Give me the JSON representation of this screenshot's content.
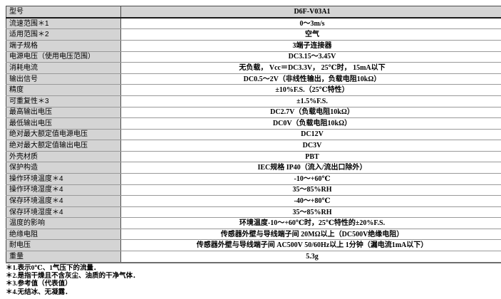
{
  "colors": {
    "label_background": "#d4d4d4",
    "row_line": "#999999",
    "column_divider": "#4a4a4a",
    "outer_border": "#7d7d7d",
    "header_rule": "#1a1a1a",
    "text": "#000000",
    "page_background": "#ffffff"
  },
  "table": {
    "rows": [
      {
        "header": true,
        "label": "型号",
        "value": "D6F-V03A1"
      },
      {
        "header": false,
        "label": "流速范围＊1",
        "value": "0～3m/s"
      },
      {
        "header": false,
        "label": "适用范围＊2",
        "value": "空气"
      },
      {
        "header": false,
        "label": "端子规格",
        "value": "3端子连接器"
      },
      {
        "header": false,
        "label": "电源电压（使用电压范围）",
        "value": "DC3.15～3.45V"
      },
      {
        "header": false,
        "label": "消耗电流",
        "value": "无负载， Vcc＝DC3.3V， 25℃时， 15mA以下"
      },
      {
        "header": false,
        "label": "输出信号",
        "value": "DC0.5～2V（非线性输出，负载电阻10kΩ）"
      },
      {
        "header": false,
        "label": "精度",
        "value": "±10%F.S.（25℃特性）"
      },
      {
        "header": false,
        "label": "可重复性＊3",
        "value": "±1.5%F.S."
      },
      {
        "header": false,
        "label": "最高输出电压",
        "value": "DC2.7V（负载电阻10kΩ）"
      },
      {
        "header": false,
        "label": "最低输出电压",
        "value": "DC0V（负载电阻10kΩ）"
      },
      {
        "header": false,
        "label": "绝对最大额定值电源电压",
        "value": "DC12V"
      },
      {
        "header": false,
        "label": "绝对最大额定值输出电压",
        "value": "DC3V"
      },
      {
        "header": false,
        "label": "外壳材质",
        "value": "PBT"
      },
      {
        "header": false,
        "label": "保护构造",
        "value": "IEC规格 IP40（流入/流出口除外）"
      },
      {
        "header": false,
        "label": "操作环境温度＊4",
        "value": "-10～+60℃"
      },
      {
        "header": false,
        "label": "操作环境湿度＊4",
        "value": "35～85%RH"
      },
      {
        "header": false,
        "label": "保存环境温度＊4",
        "value": "-40～+80℃"
      },
      {
        "header": false,
        "label": "保存环境湿度＊4",
        "value": "35～85%RH"
      },
      {
        "header": false,
        "label": "温度的影响",
        "value": "环境温度-10～+60℃时，25℃特性的±20%F.S."
      },
      {
        "header": false,
        "label": "绝缘电阻",
        "value": "传感器外壁与导线端子间 20MΩ以上（DC500V绝缘电阻）"
      },
      {
        "header": false,
        "label": "耐电压",
        "value": "传感器外壁与导线端子间 AC500V 50/60Hz以上 1分钟（漏电流1mA以下）"
      },
      {
        "header": false,
        "label": "重量",
        "value": "5.3g"
      }
    ],
    "footnotes": [
      "＊1.表示0℃、1气压下的流量．",
      "＊2.是指干燥且不含灰尘、油质的干净气体．",
      "＊3.参考值（代表值）",
      "＊4.无结冰、无凝露．"
    ]
  }
}
